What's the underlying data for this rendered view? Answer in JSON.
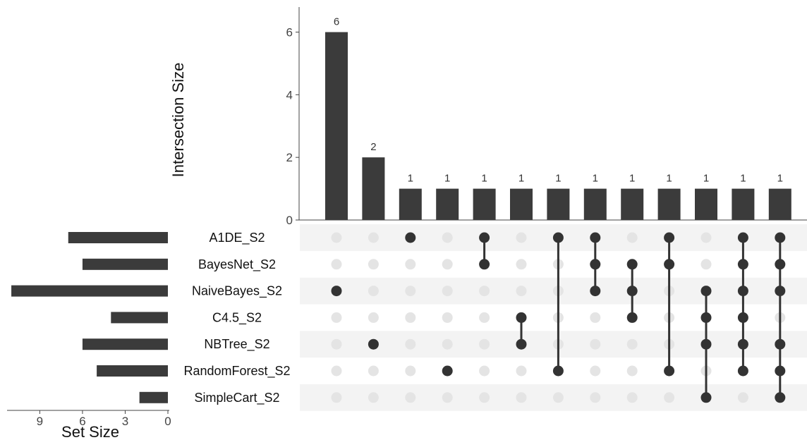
{
  "chart_data": {
    "type": "upset",
    "intersection_axis": {
      "label": "Intersection Size",
      "ticks": [
        0,
        2,
        4,
        6
      ],
      "ylim": [
        0,
        6.8
      ]
    },
    "set_size_axis": {
      "label": "Set Size",
      "ticks": [
        9,
        6,
        3,
        0
      ],
      "xlim": [
        0,
        11.3
      ]
    },
    "sets": [
      {
        "name": "A1DE_S2",
        "size": 7
      },
      {
        "name": "BayesNet_S2",
        "size": 6
      },
      {
        "name": "NaiveBayes_S2",
        "size": 11
      },
      {
        "name": "C4.5_S2",
        "size": 4
      },
      {
        "name": "NBTree_S2",
        "size": 6
      },
      {
        "name": "RandomForest_S2",
        "size": 5
      },
      {
        "name": "SimpleCart_S2",
        "size": 2
      }
    ],
    "intersections": [
      {
        "sets": [
          "NaiveBayes_S2"
        ],
        "size": 6
      },
      {
        "sets": [
          "NBTree_S2"
        ],
        "size": 2
      },
      {
        "sets": [
          "A1DE_S2"
        ],
        "size": 1
      },
      {
        "sets": [
          "RandomForest_S2"
        ],
        "size": 1
      },
      {
        "sets": [
          "A1DE_S2",
          "BayesNet_S2"
        ],
        "size": 1
      },
      {
        "sets": [
          "C4.5_S2",
          "NBTree_S2"
        ],
        "size": 1
      },
      {
        "sets": [
          "A1DE_S2",
          "RandomForest_S2"
        ],
        "size": 1
      },
      {
        "sets": [
          "A1DE_S2",
          "BayesNet_S2",
          "NaiveBayes_S2"
        ],
        "size": 1
      },
      {
        "sets": [
          "BayesNet_S2",
          "NaiveBayes_S2",
          "C4.5_S2"
        ],
        "size": 1
      },
      {
        "sets": [
          "A1DE_S2",
          "BayesNet_S2",
          "RandomForest_S2"
        ],
        "size": 1
      },
      {
        "sets": [
          "NaiveBayes_S2",
          "C4.5_S2",
          "NBTree_S2",
          "SimpleCart_S2"
        ],
        "size": 1
      },
      {
        "sets": [
          "A1DE_S2",
          "BayesNet_S2",
          "NaiveBayes_S2",
          "C4.5_S2",
          "NBTree_S2",
          "RandomForest_S2"
        ],
        "size": 1
      },
      {
        "sets": [
          "A1DE_S2",
          "BayesNet_S2",
          "NaiveBayes_S2",
          "NBTree_S2",
          "RandomForest_S2",
          "SimpleCart_S2"
        ],
        "size": 1
      }
    ],
    "colors": {
      "bar": "#3b3b3b",
      "dot_active": "#333333",
      "dot_inactive": "#e4e4e4",
      "stripe": "#f3f3f3",
      "axis": "#444444"
    }
  }
}
